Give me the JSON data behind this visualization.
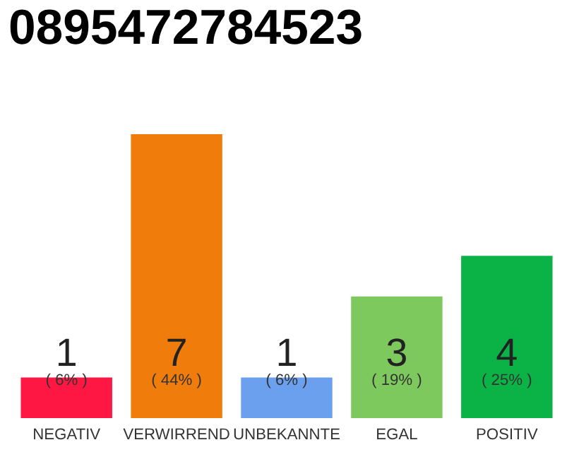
{
  "chart_data": {
    "type": "bar",
    "title": "0895472784523",
    "categories": [
      "NEGATIV",
      "VERWIRREND",
      "UNBEKANNTE",
      "EGAL",
      "POSITIV"
    ],
    "values": [
      1,
      7,
      1,
      3,
      4
    ],
    "colors": [
      "#ff1744",
      "#f07c0c",
      "#6aa0ee",
      "#7ec95e",
      "#0bb347"
    ],
    "ylim": [
      0,
      7
    ],
    "data_labels": true,
    "grid": false,
    "legend": false,
    "tick_labels": "x",
    "annotations": [
      {
        "text": "( 6% )",
        "x": "NEGATIV",
        "y": 0
      },
      {
        "text": "( 44% )",
        "x": "VERWIRREND",
        "y": 0
      },
      {
        "text": "( 6% )",
        "x": "UNBEKANNTE",
        "y": 0
      },
      {
        "text": "( 19% )",
        "x": "EGAL",
        "y": 0
      },
      {
        "text": "( 25% )",
        "x": "POSITIV",
        "y": 0
      }
    ]
  }
}
